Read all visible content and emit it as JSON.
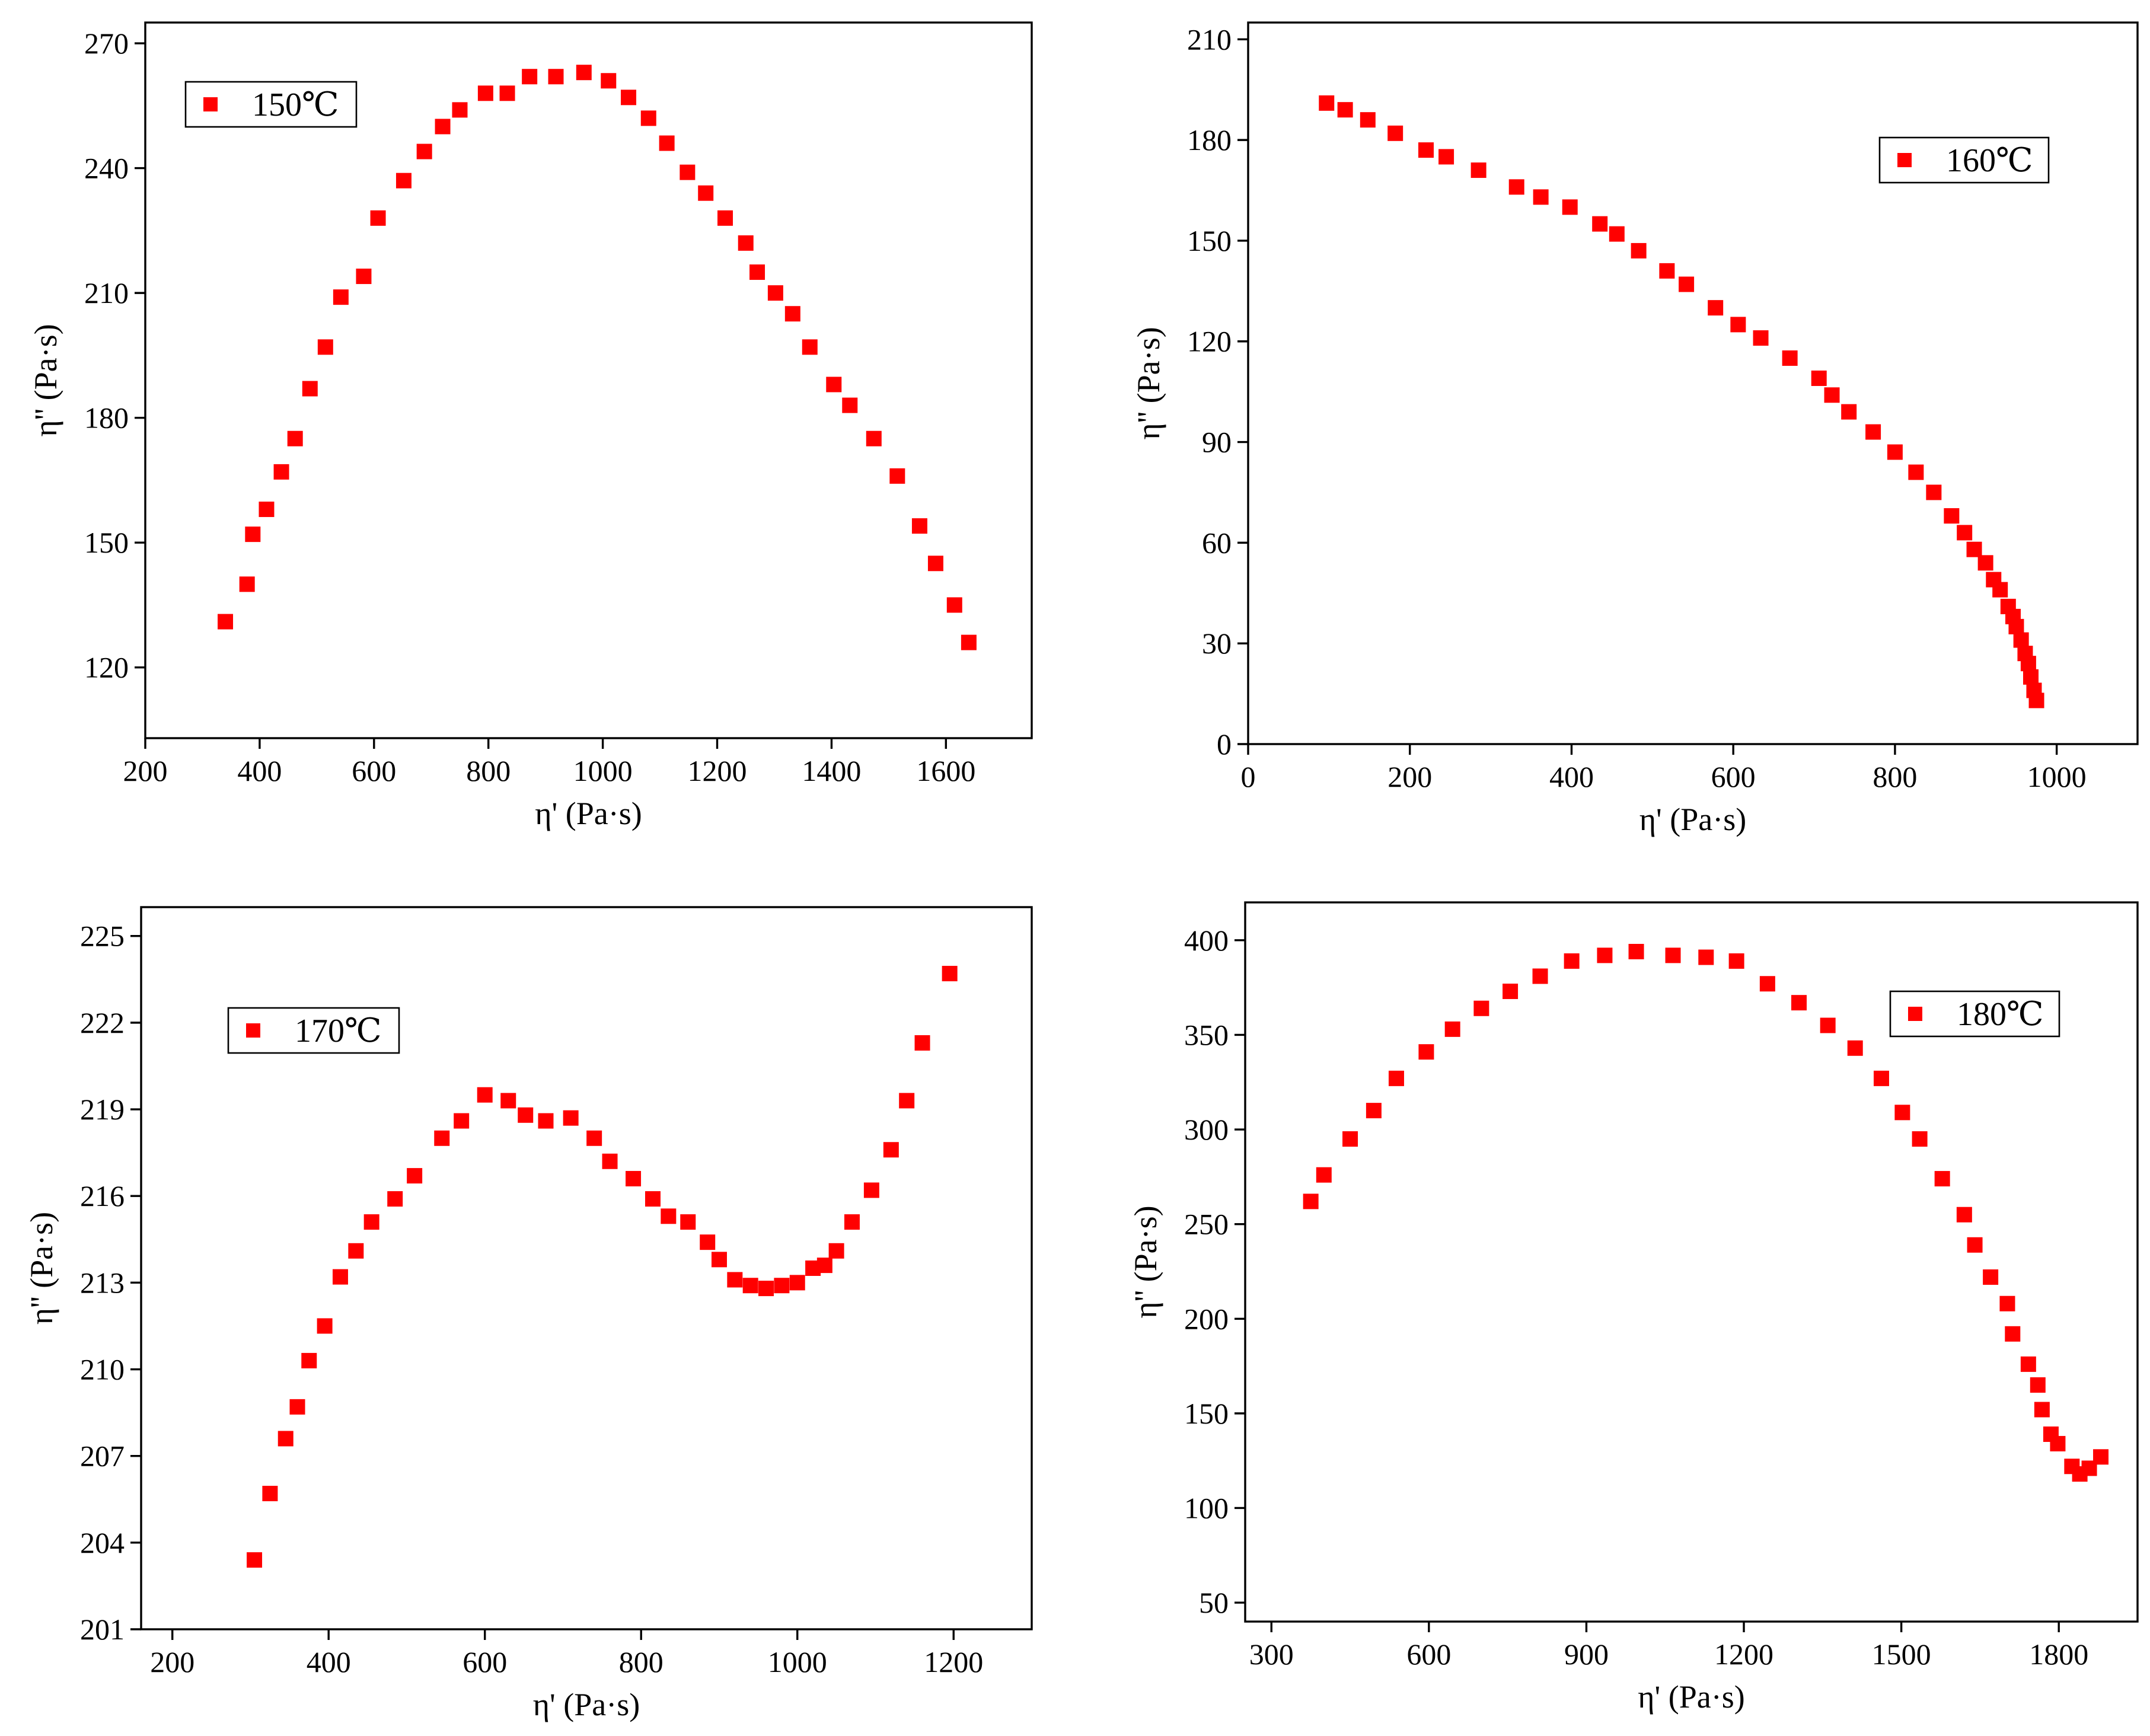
{
  "chart_data": [
    {
      "type": "scatter",
      "xlabel": "η' (Pa·s)",
      "ylabel": "η'' (Pa·s)",
      "xlim": [
        200,
        1750
      ],
      "ylim": [
        103,
        275
      ],
      "xticks": [
        200,
        400,
        600,
        800,
        1000,
        1200,
        1400,
        1600
      ],
      "yticks": [
        120,
        150,
        180,
        210,
        240,
        270
      ],
      "legend": "top-left",
      "marker_color": "#ff0000",
      "series": [
        {
          "name": "150℃",
          "x": [
            340,
            378,
            388,
            412,
            438,
            462,
            488,
            515,
            542,
            582,
            607,
            652,
            688,
            720,
            750,
            795,
            833,
            872,
            918,
            967,
            1010,
            1045,
            1080,
            1112,
            1148,
            1180,
            1214,
            1250,
            1270,
            1302,
            1332,
            1362,
            1404,
            1432,
            1474,
            1515,
            1554,
            1582,
            1615,
            1640
          ],
          "y": [
            131,
            140,
            152,
            158,
            167,
            175,
            187,
            197,
            209,
            214,
            228,
            237,
            244,
            250,
            254,
            258,
            258,
            262,
            262,
            263,
            261,
            257,
            252,
            246,
            239,
            234,
            228,
            222,
            215,
            210,
            205,
            197,
            188,
            183,
            175,
            166,
            154,
            145,
            135,
            126
          ]
        }
      ]
    },
    {
      "type": "scatter",
      "xlabel": "η' (Pa·s)",
      "ylabel": "η'' (Pa·s)",
      "xlim": [
        0,
        1100
      ],
      "ylim": [
        0,
        215
      ],
      "xticks": [
        0,
        200,
        400,
        600,
        800,
        1000
      ],
      "yticks": [
        0,
        30,
        60,
        90,
        120,
        150,
        180,
        210
      ],
      "legend": "top-right",
      "marker_color": "#ff0000",
      "series": [
        {
          "name": "160℃",
          "x": [
            97,
            120,
            148,
            182,
            220,
            245,
            285,
            332,
            362,
            398,
            435,
            456,
            483,
            518,
            542,
            578,
            606,
            634,
            670,
            706,
            722,
            743,
            773,
            800,
            826,
            848,
            870,
            886,
            898,
            912,
            922,
            930,
            940,
            946,
            950,
            956,
            961,
            965,
            968,
            972,
            975
          ],
          "y": [
            191,
            189,
            186,
            182,
            177,
            175,
            171,
            166,
            163,
            160,
            155,
            152,
            147,
            141,
            137,
            130,
            125,
            121,
            115,
            109,
            104,
            99,
            93,
            87,
            81,
            75,
            68,
            63,
            58,
            54,
            49,
            46,
            41,
            38,
            35,
            31,
            27,
            24,
            20,
            16,
            13
          ]
        }
      ]
    },
    {
      "type": "scatter",
      "xlabel": "η' (Pa·s)",
      "ylabel": "η'' (Pa·s)",
      "xlim": [
        160,
        1300
      ],
      "ylim": [
        201,
        226
      ],
      "xticks": [
        200,
        400,
        600,
        800,
        1000,
        1200
      ],
      "yticks": [
        201,
        204,
        207,
        210,
        213,
        216,
        219,
        222,
        225
      ],
      "legend": "top-left",
      "marker_color": "#ff0000",
      "series": [
        {
          "name": "170℃",
          "x": [
            305,
            325,
            345,
            360,
            375,
            395,
            415,
            435,
            455,
            485,
            510,
            545,
            570,
            600,
            630,
            652,
            678,
            710,
            740,
            760,
            790,
            815,
            835,
            860,
            885,
            900,
            920,
            940,
            960,
            980,
            1000,
            1020,
            1035,
            1050,
            1070,
            1095,
            1120,
            1140,
            1160,
            1195
          ],
          "y": [
            203.4,
            205.7,
            207.6,
            208.7,
            210.3,
            211.5,
            213.2,
            214.1,
            215.1,
            215.9,
            216.7,
            218.0,
            218.6,
            219.5,
            219.3,
            218.8,
            218.6,
            218.7,
            218.0,
            217.2,
            216.6,
            215.9,
            215.3,
            215.1,
            214.4,
            213.8,
            213.1,
            212.9,
            212.8,
            212.9,
            213.0,
            213.5,
            213.6,
            214.1,
            215.1,
            216.2,
            217.6,
            219.3,
            221.3,
            223.7
          ]
        }
      ]
    },
    {
      "type": "scatter",
      "xlabel": "η' (Pa·s)",
      "ylabel": "η'' (Pa·s)",
      "xlim": [
        250,
        1950
      ],
      "ylim": [
        40,
        420
      ],
      "xticks": [
        300,
        600,
        900,
        1200,
        1500,
        1800
      ],
      "yticks": [
        50,
        100,
        150,
        200,
        250,
        300,
        350,
        400
      ],
      "legend": "top-right",
      "marker_color": "#ff0000",
      "series": [
        {
          "name": "180℃",
          "x": [
            375,
            400,
            450,
            495,
            538,
            595,
            645,
            700,
            755,
            812,
            872,
            935,
            995,
            1065,
            1128,
            1186,
            1245,
            1305,
            1360,
            1412,
            1462,
            1502,
            1535,
            1578,
            1620,
            1640,
            1670,
            1702,
            1712,
            1742,
            1760,
            1768,
            1785,
            1798,
            1825,
            1840,
            1858,
            1880
          ],
          "y": [
            262,
            276,
            295,
            310,
            327,
            341,
            353,
            364,
            373,
            381,
            389,
            392,
            394,
            392,
            391,
            389,
            377,
            367,
            355,
            343,
            327,
            309,
            295,
            274,
            255,
            239,
            222,
            208,
            192,
            176,
            165,
            152,
            139,
            134,
            122,
            118,
            121,
            127
          ]
        }
      ]
    }
  ]
}
